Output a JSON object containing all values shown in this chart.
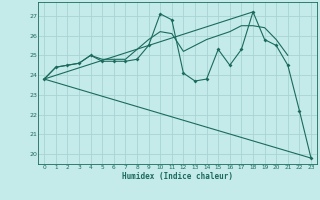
{
  "xlabel": "Humidex (Indice chaleur)",
  "xlim": [
    -0.5,
    23.5
  ],
  "ylim": [
    19.5,
    27.7
  ],
  "yticks": [
    20,
    21,
    22,
    23,
    24,
    25,
    26,
    27
  ],
  "xticks": [
    0,
    1,
    2,
    3,
    4,
    5,
    6,
    7,
    8,
    9,
    10,
    11,
    12,
    13,
    14,
    15,
    16,
    17,
    18,
    19,
    20,
    21,
    22,
    23
  ],
  "bg_color": "#c5eaea",
  "grid_color": "#a8d4d4",
  "line_color": "#1a6b5a",
  "line1_x": [
    0,
    1,
    2,
    3,
    4,
    5,
    6,
    7,
    8,
    9,
    10,
    11,
    12,
    13,
    14,
    15,
    16,
    17,
    18,
    19,
    20,
    21,
    22,
    23
  ],
  "line1_y": [
    23.8,
    24.4,
    24.5,
    24.6,
    25.0,
    24.7,
    24.7,
    24.7,
    24.8,
    25.5,
    27.1,
    26.8,
    24.1,
    23.7,
    23.8,
    25.3,
    24.5,
    25.3,
    27.2,
    25.8,
    25.5,
    24.5,
    22.2,
    19.8
  ],
  "line2_x": [
    0,
    1,
    2,
    3,
    4,
    5,
    6,
    7,
    8,
    9,
    10,
    11,
    12,
    13,
    14,
    15,
    16,
    17,
    18,
    19,
    20,
    21
  ],
  "line2_y": [
    23.8,
    24.4,
    24.5,
    24.6,
    25.0,
    24.8,
    24.8,
    24.8,
    25.3,
    25.8,
    26.2,
    26.1,
    25.2,
    25.5,
    25.8,
    26.0,
    26.2,
    26.5,
    26.5,
    26.4,
    25.8,
    25.0
  ],
  "line3_x": [
    0,
    23
  ],
  "line3_y": [
    23.8,
    19.8
  ],
  "line4_x": [
    0,
    18
  ],
  "line4_y": [
    23.8,
    27.2
  ]
}
